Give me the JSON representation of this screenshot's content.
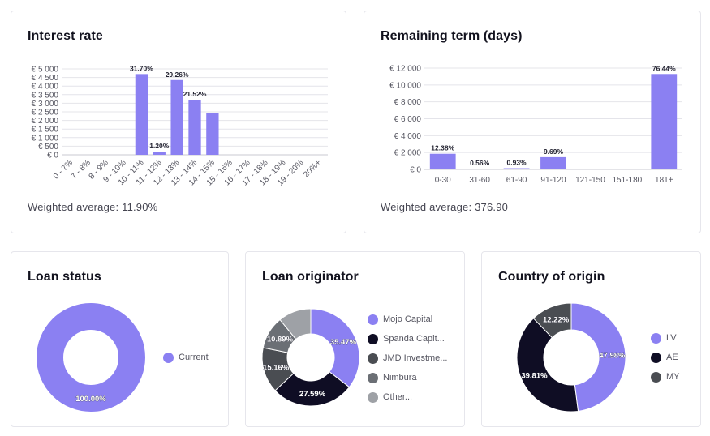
{
  "cards": {
    "interest_rate": {
      "title": "Interest rate",
      "weighted_average": "Weighted average: 11.90%"
    },
    "remaining_term": {
      "title": "Remaining term (days)",
      "weighted_average": "Weighted average: 376.90"
    },
    "loan_status": {
      "title": "Loan status"
    },
    "loan_originator": {
      "title": "Loan originator"
    },
    "country_of_origin": {
      "title": "Country of origin"
    }
  },
  "colors": {
    "purple": "#8b80f2",
    "navy": "#0f0d24",
    "dark_gray": "#4a4d52",
    "mid_gray": "#6b6f75",
    "light_gray": "#9ea1a6",
    "grid": "#e4e4ea"
  },
  "chart_data": [
    {
      "id": "interest_rate",
      "type": "bar",
      "title": "Interest rate",
      "categories": [
        "0 - 7%",
        "7 - 8%",
        "8 - 9%",
        "9 - 10%",
        "10 - 11%",
        "11 - 12%",
        "12 - 13%",
        "13 - 14%",
        "14 - 15%",
        "15 - 16%",
        "16 - 17%",
        "17 - 18%",
        "18 - 19%",
        "19 - 20%",
        "20%+"
      ],
      "values": [
        0,
        0,
        0,
        0,
        4700,
        180,
        4350,
        3200,
        2450,
        0,
        0,
        0,
        0,
        0,
        0
      ],
      "data_labels": [
        "",
        "",
        "",
        "",
        "31.70%",
        "1.20%",
        "29.26%",
        "21.52%",
        "",
        "",
        "",
        "",
        "",
        "",
        ""
      ],
      "y_ticks": [
        "€ 0",
        "€ 500",
        "€ 1 000",
        "€ 1 500",
        "€ 2 000",
        "€ 2 500",
        "€ 3 000",
        "€ 3 500",
        "€ 4 000",
        "€ 4 500",
        "€ 5 000"
      ],
      "ylim": [
        0,
        5000
      ],
      "grid": true
    },
    {
      "id": "remaining_term",
      "type": "bar",
      "title": "Remaining term (days)",
      "categories": [
        "0-30",
        "31-60",
        "61-90",
        "91-120",
        "121-150",
        "151-180",
        "181+"
      ],
      "values": [
        1850,
        80,
        140,
        1450,
        0,
        0,
        11300
      ],
      "data_labels": [
        "12.38%",
        "0.56%",
        "0.93%",
        "9.69%",
        "",
        "",
        "76.44%"
      ],
      "y_ticks": [
        "€ 0",
        "€ 2 000",
        "€ 4 000",
        "€ 6 000",
        "€ 8 000",
        "€ 10 000",
        "€ 12 000"
      ],
      "ylim": [
        0,
        12000
      ],
      "grid": true
    },
    {
      "id": "loan_status",
      "type": "pie",
      "title": "Loan status",
      "slices": [
        {
          "name": "Current",
          "value": 100.0,
          "label": "100.00%",
          "color": "#8b80f2"
        }
      ],
      "legend": "right"
    },
    {
      "id": "loan_originator",
      "type": "pie",
      "title": "Loan originator",
      "slices": [
        {
          "name": "Mojo Capital",
          "value": 35.47,
          "label": "35.47%",
          "color": "#8b80f2"
        },
        {
          "name": "Spanda Capit...",
          "value": 27.59,
          "label": "27.59%",
          "color": "#0f0d24"
        },
        {
          "name": "JMD Investme...",
          "value": 15.16,
          "label": "15.16%",
          "color": "#4a4d52"
        },
        {
          "name": "Nimbura",
          "value": 10.89,
          "label": "10.89%",
          "color": "#6b6f75"
        },
        {
          "name": "Other...",
          "value": 10.89,
          "label": "",
          "color": "#9ea1a6"
        }
      ],
      "legend": "right"
    },
    {
      "id": "country_of_origin",
      "type": "pie",
      "title": "Country of origin",
      "slices": [
        {
          "name": "LV",
          "value": 47.98,
          "label": "47.98%",
          "color": "#8b80f2"
        },
        {
          "name": "AE",
          "value": 39.81,
          "label": "39.81%",
          "color": "#0f0d24"
        },
        {
          "name": "MY",
          "value": 12.22,
          "label": "12.22%",
          "color": "#4a4d52"
        }
      ],
      "legend": "right"
    }
  ]
}
